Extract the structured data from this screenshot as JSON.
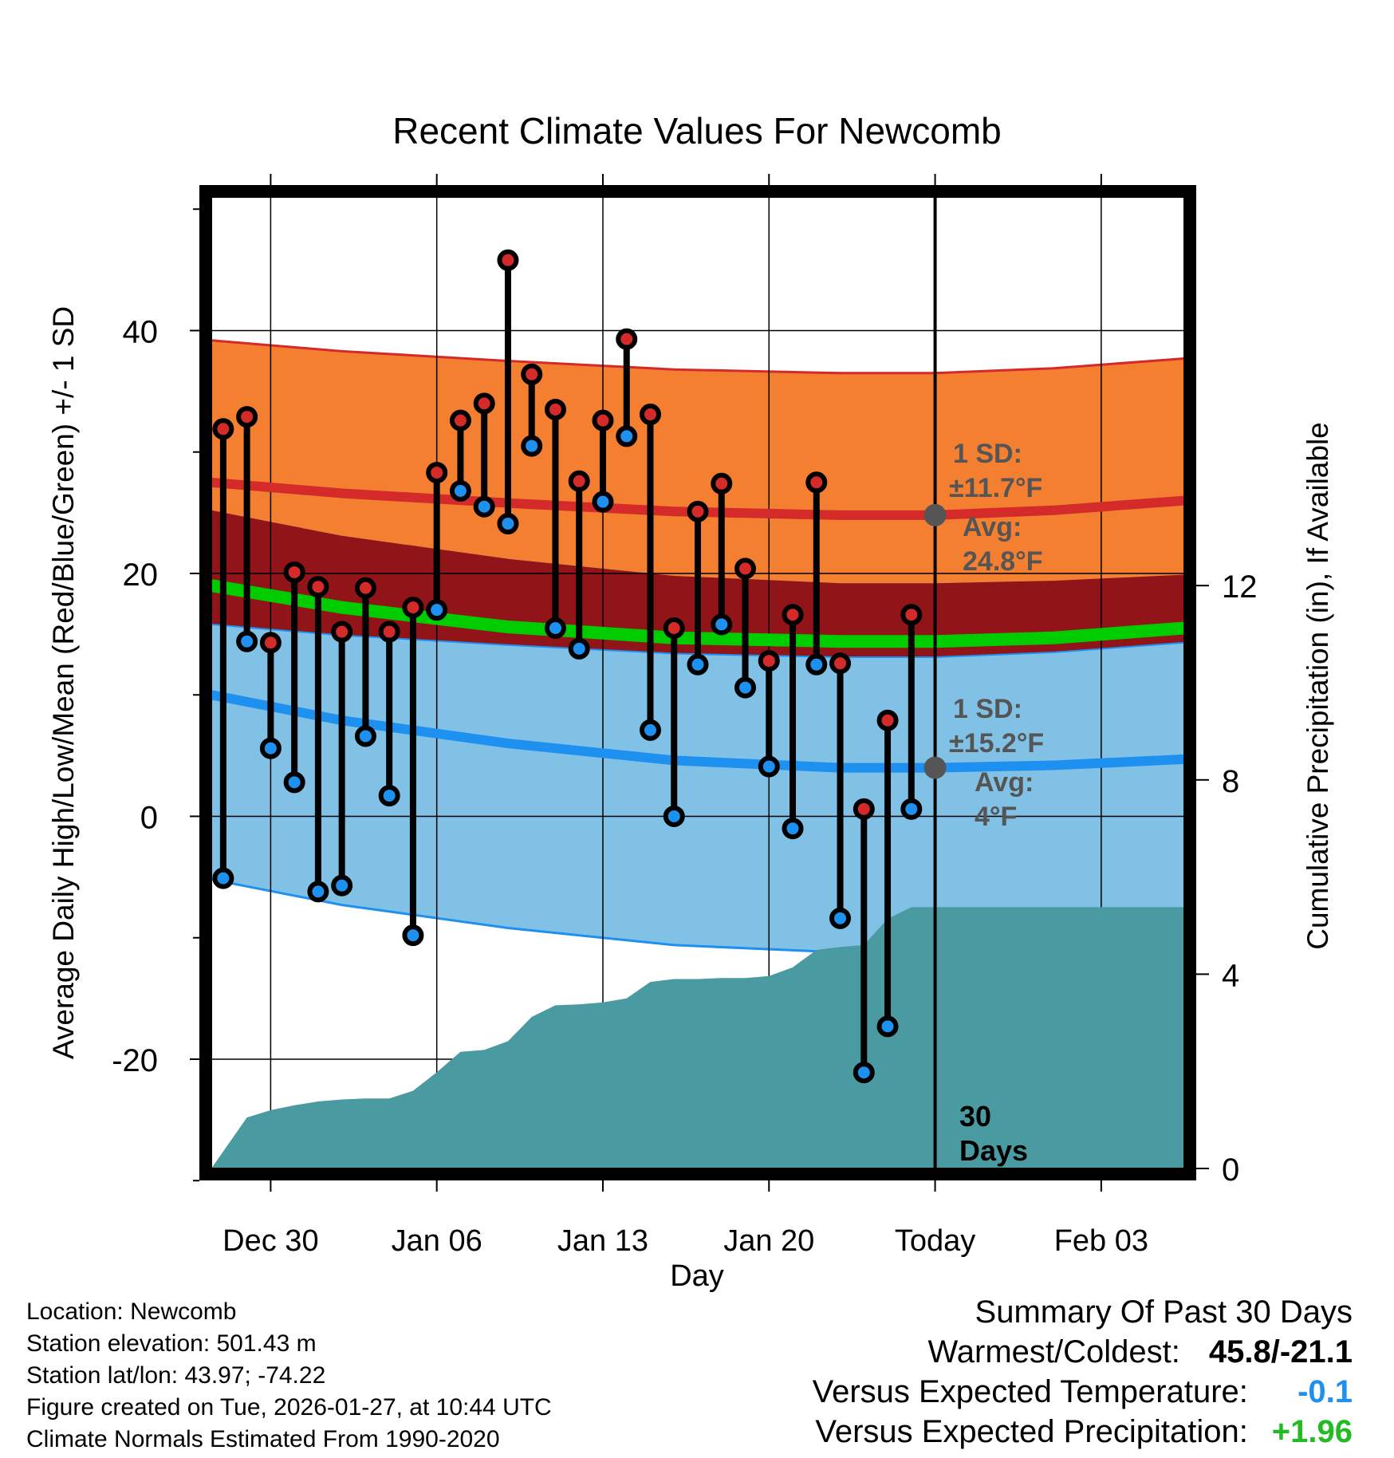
{
  "chart_data": {
    "type": "line",
    "title": "Recent Climate Values For Newcomb",
    "xlabel": "Day",
    "ylabel": "Average Daily High/Low/Mean (Red/Blue/Green) +/- 1 SD",
    "y2label": "Cumulative Precipitation (in), If Available",
    "xlim": [
      -2.5,
      38.5
    ],
    "ylim": [
      -29,
      51
    ],
    "y2lim": [
      0,
      20
    ],
    "x_ticks": [
      {
        "x": 0,
        "label": "Dec 30"
      },
      {
        "x": 7,
        "label": "Jan 06"
      },
      {
        "x": 14,
        "label": "Jan 13"
      },
      {
        "x": 21,
        "label": "Jan 20"
      },
      {
        "x": 28,
        "label": "Today"
      },
      {
        "x": 35,
        "label": "Feb 03"
      }
    ],
    "y_ticks": [
      -20,
      0,
      20,
      40
    ],
    "y2_ticks": [
      0,
      4,
      8,
      12
    ],
    "today_x": 28,
    "today_label_1": "30",
    "today_label_2": "Days",
    "normals": {
      "x": [
        -2.5,
        3,
        10,
        17,
        24,
        28,
        33,
        38.5
      ],
      "high_mean": [
        27.5,
        26.6,
        25.8,
        25.1,
        24.8,
        24.8,
        25.2,
        26.0
      ],
      "high_sd": 11.7,
      "mean": [
        19.0,
        17.2,
        15.6,
        14.7,
        14.4,
        14.4,
        14.7,
        15.5
      ],
      "low_mean": [
        10.0,
        7.9,
        6.0,
        4.6,
        4.0,
        4.0,
        4.2,
        4.7
      ],
      "low_sd": 15.2,
      "high_annotation": {
        "sd_title": "1 SD:",
        "sd_value": "±11.7°F",
        "avg_title": "Avg:",
        "avg_value": "24.8°F",
        "value": 24.8
      },
      "low_annotation": {
        "sd_title": "1 SD:",
        "sd_value": "±15.2°F",
        "avg_title": "Avg:",
        "avg_value": "4°F",
        "value": 4.0
      }
    },
    "series": [
      {
        "name": "High",
        "color": "#d42a2a",
        "values": [
          31.9,
          32.9,
          14.3,
          20.1,
          18.9,
          15.2,
          18.8,
          15.2,
          17.2,
          28.3,
          32.6,
          34.0,
          45.8,
          36.4,
          33.5,
          27.6,
          32.6,
          39.3,
          33.1,
          15.5,
          25.1,
          27.4,
          20.4,
          12.8,
          16.6,
          27.5,
          12.6,
          0.6,
          7.9,
          16.6
        ]
      },
      {
        "name": "Low",
        "color": "#1e90f0",
        "values": [
          -5.1,
          14.4,
          5.6,
          2.8,
          -6.2,
          -5.7,
          6.6,
          1.7,
          -9.8,
          17.0,
          26.8,
          25.5,
          24.1,
          30.5,
          15.5,
          13.8,
          25.9,
          31.3,
          7.1,
          0.0,
          12.5,
          15.8,
          10.6,
          4.1,
          -1.0,
          12.5,
          -8.4,
          -21.1,
          -17.3,
          0.6
        ]
      }
    ],
    "days_x": [
      -2,
      -1,
      0,
      1,
      2,
      3,
      4,
      5,
      6,
      7,
      8,
      9,
      10,
      11,
      12,
      13,
      14,
      15,
      16,
      17,
      18,
      19,
      20,
      21,
      22,
      23,
      24,
      25,
      26,
      27
    ],
    "precip": {
      "name": "Cumulative Precipitation",
      "color": "#4a9aa2",
      "x": [
        -2.5,
        -1,
        0,
        1,
        2,
        3,
        4,
        5,
        6,
        7,
        8,
        9,
        10,
        11,
        12,
        13,
        14,
        15,
        16,
        17,
        18,
        19,
        20,
        21,
        22,
        23,
        24,
        25,
        26,
        27,
        38.5
      ],
      "values": [
        0.0,
        1.05,
        1.2,
        1.3,
        1.38,
        1.42,
        1.44,
        1.44,
        1.6,
        1.98,
        2.4,
        2.44,
        2.62,
        3.12,
        3.36,
        3.38,
        3.42,
        3.5,
        3.84,
        3.9,
        3.9,
        3.92,
        3.92,
        3.96,
        4.14,
        4.5,
        4.56,
        4.6,
        5.14,
        5.38,
        5.38
      ]
    },
    "colors": {
      "high_band": "#f47f30",
      "low_band": "#82c1e6",
      "overlap_band": "#901418",
      "high_line": "#d42a2a",
      "low_line": "#1e90f0",
      "mean_line": "#00cc00",
      "annotation": "#555555"
    }
  },
  "info": {
    "location": "Location: Newcomb",
    "elevation": "Station elevation: 501.43 m",
    "latlon": "Station lat/lon: 43.97; -74.22",
    "created": "Figure created on Tue, 2026-01-27, at 10:44 UTC",
    "normals": "Climate Normals Estimated From 1990-2020"
  },
  "summary": {
    "title": "Summary Of Past 30 Days",
    "warmest_label": "Warmest/Coldest:",
    "warmest_value": "45.8/-21.1",
    "temp_label": "Versus Expected Temperature:",
    "temp_value": "-0.1",
    "temp_color": "#1e90f0",
    "precip_label": "Versus Expected Precipitation:",
    "precip_value": "+1.96",
    "precip_color": "#22bb22"
  }
}
